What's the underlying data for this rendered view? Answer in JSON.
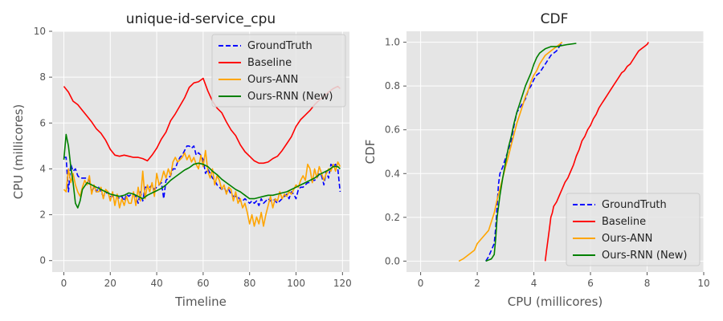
{
  "colors": {
    "ground_truth": "#0000ff",
    "baseline": "#ff0000",
    "ours_ann": "#ffa500",
    "ours_rnn": "#008000",
    "axes_bg": "#e5e5e5",
    "grid": "#ffffff"
  },
  "chart_data": [
    {
      "type": "line",
      "title": "unique-id-service_cpu",
      "xlabel": "Timeline",
      "ylabel": "CPU (millicores)",
      "xlim": [
        -5,
        123
      ],
      "ylim": [
        -0.5,
        10
      ],
      "xticks": [
        0,
        20,
        40,
        60,
        80,
        100,
        120
      ],
      "yticks": [
        0,
        2,
        4,
        6,
        8,
        10
      ],
      "grid": true,
      "legend": "upper right",
      "series": [
        {
          "name": "GroundTruth",
          "style": "dashed",
          "x": [
            0,
            1,
            2,
            3,
            4,
            5,
            6,
            7,
            8,
            9,
            10,
            11,
            12,
            13,
            14,
            15,
            16,
            17,
            18,
            19,
            20,
            21,
            22,
            23,
            24,
            25,
            26,
            27,
            28,
            29,
            30,
            31,
            32,
            33,
            34,
            35,
            36,
            37,
            38,
            39,
            40,
            41,
            42,
            43,
            44,
            45,
            46,
            47,
            48,
            49,
            50,
            51,
            52,
            53,
            54,
            55,
            56,
            57,
            58,
            59,
            60,
            61,
            62,
            63,
            64,
            65,
            66,
            67,
            68,
            69,
            70,
            71,
            72,
            73,
            74,
            75,
            76,
            77,
            78,
            79,
            80,
            81,
            82,
            83,
            84,
            85,
            86,
            87,
            88,
            89,
            90,
            91,
            92,
            93,
            94,
            95,
            96,
            97,
            98,
            99,
            100,
            101,
            102,
            103,
            104,
            105,
            106,
            107,
            108,
            109,
            110,
            111,
            112,
            113,
            114,
            115,
            116,
            117,
            118,
            119
          ],
          "values": [
            4.5,
            4.5,
            3.0,
            4.2,
            3.9,
            4.0,
            3.7,
            3.6,
            3.6,
            3.6,
            3.6,
            3.5,
            3.0,
            3.2,
            3.0,
            3.2,
            3.0,
            2.8,
            2.9,
            3.0,
            2.8,
            2.8,
            2.9,
            2.8,
            2.7,
            2.8,
            2.6,
            2.9,
            2.8,
            2.9,
            2.9,
            2.8,
            2.5,
            3.0,
            2.6,
            3.2,
            3.2,
            3.2,
            3.3,
            3.1,
            3.2,
            3.3,
            3.4,
            2.7,
            3.5,
            3.6,
            3.7,
            4.0,
            4.0,
            4.3,
            4.5,
            4.6,
            4.8,
            5.0,
            5.0,
            4.9,
            5.0,
            4.6,
            4.7,
            4.6,
            4.4,
            3.8,
            4.0,
            3.8,
            3.6,
            3.5,
            3.3,
            3.2,
            3.1,
            3.2,
            3.0,
            3.1,
            2.9,
            2.8,
            2.8,
            2.8,
            2.6,
            2.6,
            2.7,
            2.6,
            2.5,
            2.6,
            2.5,
            2.6,
            2.4,
            2.7,
            2.5,
            2.6,
            2.7,
            2.6,
            2.7,
            2.6,
            2.5,
            2.6,
            2.7,
            2.8,
            2.9,
            2.7,
            3.0,
            2.9,
            2.7,
            3.1,
            3.2,
            3.2,
            3.3,
            3.4,
            3.4,
            3.5,
            3.5,
            3.6,
            3.8,
            3.7,
            3.3,
            3.9,
            3.6,
            4.2,
            4.1,
            4.2,
            4.0,
            3.0
          ]
        },
        {
          "name": "Baseline",
          "style": "solid",
          "x": [
            0,
            2,
            4,
            6,
            8,
            10,
            12,
            14,
            16,
            18,
            20,
            22,
            24,
            26,
            28,
            30,
            32,
            34,
            36,
            38,
            40,
            42,
            44,
            46,
            48,
            50,
            52,
            54,
            56,
            58,
            60,
            62,
            64,
            66,
            68,
            70,
            72,
            74,
            76,
            78,
            80,
            82,
            84,
            86,
            88,
            90,
            92,
            94,
            96,
            98,
            100,
            102,
            104,
            106,
            108,
            110,
            112,
            114,
            116,
            118,
            119
          ],
          "values": [
            7.6,
            7.35,
            6.95,
            6.8,
            6.55,
            6.3,
            6.05,
            5.75,
            5.55,
            5.25,
            4.85,
            4.6,
            4.55,
            4.6,
            4.55,
            4.5,
            4.5,
            4.45,
            4.35,
            4.6,
            4.9,
            5.3,
            5.6,
            6.1,
            6.4,
            6.75,
            7.1,
            7.55,
            7.75,
            7.8,
            7.95,
            7.4,
            6.95,
            6.65,
            6.45,
            6.05,
            5.7,
            5.45,
            5.05,
            4.75,
            4.55,
            4.35,
            4.25,
            4.25,
            4.3,
            4.45,
            4.55,
            4.8,
            5.1,
            5.4,
            5.85,
            6.15,
            6.35,
            6.55,
            6.8,
            7.0,
            7.15,
            7.35,
            7.5,
            7.6,
            7.5
          ]
        },
        {
          "name": "Ours-ANN",
          "style": "solid",
          "x": [
            0,
            1,
            2,
            3,
            4,
            5,
            6,
            7,
            8,
            9,
            10,
            11,
            12,
            13,
            14,
            15,
            16,
            17,
            18,
            19,
            20,
            21,
            22,
            23,
            24,
            25,
            26,
            27,
            28,
            29,
            30,
            31,
            32,
            33,
            34,
            35,
            36,
            37,
            38,
            39,
            40,
            41,
            42,
            43,
            44,
            45,
            46,
            47,
            48,
            49,
            50,
            51,
            52,
            53,
            54,
            55,
            56,
            57,
            58,
            59,
            60,
            61,
            62,
            63,
            64,
            65,
            66,
            67,
            68,
            69,
            70,
            71,
            72,
            73,
            74,
            75,
            76,
            77,
            78,
            79,
            80,
            81,
            82,
            83,
            84,
            85,
            86,
            87,
            88,
            89,
            90,
            91,
            92,
            93,
            94,
            95,
            96,
            97,
            98,
            99,
            100,
            101,
            102,
            103,
            104,
            105,
            106,
            107,
            108,
            109,
            110,
            111,
            112,
            113,
            114,
            115,
            116,
            117,
            118,
            119
          ],
          "values": [
            3.1,
            3.0,
            4.0,
            3.4,
            3.8,
            3.3,
            3.0,
            2.8,
            3.2,
            3.5,
            3.3,
            3.7,
            2.9,
            3.3,
            3.0,
            3.0,
            3.2,
            2.7,
            3.1,
            3.0,
            2.6,
            3.0,
            2.4,
            2.9,
            2.3,
            2.7,
            2.4,
            2.8,
            2.5,
            2.5,
            3.0,
            2.4,
            3.2,
            2.6,
            3.9,
            2.7,
            3.3,
            3.0,
            3.4,
            2.8,
            3.8,
            3.3,
            3.5,
            3.9,
            3.6,
            4.0,
            3.7,
            4.3,
            4.5,
            4.3,
            4.4,
            4.5,
            4.7,
            4.4,
            4.6,
            4.3,
            4.5,
            4.2,
            4.0,
            4.6,
            4.1,
            4.8,
            3.9,
            3.6,
            4.0,
            3.3,
            3.7,
            3.5,
            3.1,
            3.3,
            2.9,
            3.2,
            3.1,
            2.6,
            3.0,
            2.5,
            2.7,
            2.3,
            2.5,
            2.1,
            1.6,
            2.0,
            1.5,
            1.9,
            1.6,
            2.1,
            1.5,
            2.0,
            2.4,
            2.8,
            2.3,
            2.7,
            2.6,
            3.0,
            2.7,
            2.9,
            2.8,
            3.0,
            2.9,
            3.1,
            3.3,
            3.2,
            3.5,
            3.7,
            3.5,
            4.2,
            4.0,
            3.4,
            4.0,
            3.6,
            4.1,
            3.8,
            3.5,
            3.8,
            4.0,
            3.9,
            4.2,
            3.9,
            4.3,
            4.1
          ]
        },
        {
          "name": "Ours-RNN (New)",
          "style": "solid",
          "x": [
            0,
            1,
            2,
            3,
            4,
            5,
            6,
            7,
            8,
            10,
            12,
            14,
            16,
            18,
            20,
            22,
            24,
            26,
            28,
            30,
            32,
            34,
            36,
            38,
            40,
            42,
            44,
            46,
            48,
            50,
            52,
            54,
            56,
            58,
            60,
            62,
            64,
            66,
            68,
            70,
            72,
            74,
            76,
            78,
            80,
            82,
            84,
            86,
            88,
            90,
            92,
            94,
            96,
            98,
            100,
            102,
            104,
            106,
            108,
            110,
            112,
            114,
            116,
            118,
            119
          ],
          "values": [
            4.4,
            5.5,
            5.0,
            4.1,
            3.4,
            2.5,
            2.3,
            2.6,
            3.1,
            3.4,
            3.3,
            3.2,
            3.1,
            3.0,
            2.9,
            2.85,
            2.8,
            2.85,
            2.95,
            2.9,
            2.8,
            2.7,
            2.85,
            2.95,
            3.05,
            3.15,
            3.3,
            3.5,
            3.65,
            3.8,
            3.95,
            4.05,
            4.2,
            4.25,
            4.2,
            4.1,
            3.9,
            3.75,
            3.55,
            3.4,
            3.25,
            3.1,
            3.0,
            2.85,
            2.7,
            2.7,
            2.75,
            2.8,
            2.85,
            2.85,
            2.9,
            2.95,
            3.0,
            3.1,
            3.2,
            3.3,
            3.4,
            3.5,
            3.6,
            3.75,
            3.85,
            3.95,
            4.1,
            4.1,
            4.0
          ]
        }
      ]
    },
    {
      "type": "line",
      "title": "CDF",
      "xlabel": "CPU (millicores)",
      "ylabel": "CDF",
      "xlim": [
        -0.5,
        10
      ],
      "ylim": [
        -0.05,
        1.05
      ],
      "xticks": [
        0,
        2,
        4,
        6,
        8,
        10
      ],
      "yticks": [
        0.0,
        0.2,
        0.4,
        0.6,
        0.8,
        1.0
      ],
      "grid": true,
      "legend": "lower right",
      "series": [
        {
          "name": "GroundTruth",
          "style": "dashed",
          "x": [
            2.3,
            2.4,
            2.5,
            2.6,
            2.65,
            2.7,
            2.75,
            2.8,
            2.9,
            3.0,
            3.1,
            3.2,
            3.3,
            3.4,
            3.5,
            3.6,
            3.7,
            3.8,
            3.9,
            4.0,
            4.1,
            4.2,
            4.3,
            4.4,
            4.5,
            4.6,
            4.7,
            4.8,
            4.9,
            5.0
          ],
          "values": [
            0.0,
            0.02,
            0.05,
            0.08,
            0.15,
            0.25,
            0.35,
            0.4,
            0.43,
            0.47,
            0.51,
            0.55,
            0.62,
            0.68,
            0.7,
            0.72,
            0.74,
            0.78,
            0.8,
            0.83,
            0.85,
            0.86,
            0.88,
            0.9,
            0.92,
            0.94,
            0.95,
            0.96,
            0.98,
            1.0
          ]
        },
        {
          "name": "Baseline",
          "style": "solid",
          "x": [
            4.4,
            4.45,
            4.5,
            4.55,
            4.6,
            4.65,
            4.7,
            4.8,
            4.9,
            5.0,
            5.1,
            5.2,
            5.3,
            5.4,
            5.5,
            5.6,
            5.7,
            5.8,
            5.9,
            6.0,
            6.1,
            6.2,
            6.3,
            6.4,
            6.5,
            6.6,
            6.7,
            6.8,
            6.9,
            7.0,
            7.1,
            7.2,
            7.3,
            7.4,
            7.5,
            7.6,
            7.7,
            7.8,
            7.9,
            8.0,
            8.05
          ],
          "values": [
            0.0,
            0.05,
            0.1,
            0.15,
            0.2,
            0.22,
            0.25,
            0.27,
            0.3,
            0.33,
            0.36,
            0.38,
            0.41,
            0.44,
            0.48,
            0.51,
            0.55,
            0.57,
            0.6,
            0.62,
            0.65,
            0.67,
            0.7,
            0.72,
            0.74,
            0.76,
            0.78,
            0.8,
            0.82,
            0.84,
            0.86,
            0.87,
            0.89,
            0.9,
            0.92,
            0.94,
            0.96,
            0.97,
            0.98,
            0.99,
            1.0
          ]
        },
        {
          "name": "Ours-ANN",
          "style": "solid",
          "x": [
            1.35,
            1.5,
            1.7,
            1.9,
            2.0,
            2.2,
            2.4,
            2.5,
            2.6,
            2.7,
            2.8,
            2.9,
            3.0,
            3.1,
            3.2,
            3.3,
            3.4,
            3.5,
            3.6,
            3.7,
            3.8,
            3.9,
            4.0,
            4.1,
            4.2,
            4.3,
            4.4,
            4.5,
            4.6,
            4.7,
            4.8,
            5.0
          ],
          "values": [
            0.0,
            0.01,
            0.03,
            0.05,
            0.08,
            0.11,
            0.14,
            0.18,
            0.22,
            0.28,
            0.33,
            0.38,
            0.43,
            0.48,
            0.53,
            0.58,
            0.63,
            0.67,
            0.71,
            0.75,
            0.78,
            0.82,
            0.85,
            0.87,
            0.9,
            0.92,
            0.94,
            0.95,
            0.96,
            0.97,
            0.98,
            1.0
          ]
        },
        {
          "name": "Ours-RNN (New)",
          "style": "solid",
          "x": [
            2.3,
            2.5,
            2.6,
            2.65,
            2.7,
            2.8,
            2.9,
            3.0,
            3.1,
            3.2,
            3.3,
            3.4,
            3.5,
            3.6,
            3.7,
            3.8,
            3.9,
            4.0,
            4.1,
            4.2,
            4.3,
            4.4,
            4.6,
            4.8,
            5.0,
            5.2,
            5.5
          ],
          "values": [
            0.0,
            0.01,
            0.03,
            0.1,
            0.2,
            0.3,
            0.38,
            0.45,
            0.52,
            0.57,
            0.63,
            0.68,
            0.72,
            0.76,
            0.8,
            0.83,
            0.86,
            0.9,
            0.93,
            0.95,
            0.96,
            0.97,
            0.98,
            0.98,
            0.985,
            0.99,
            0.995
          ]
        }
      ]
    }
  ]
}
